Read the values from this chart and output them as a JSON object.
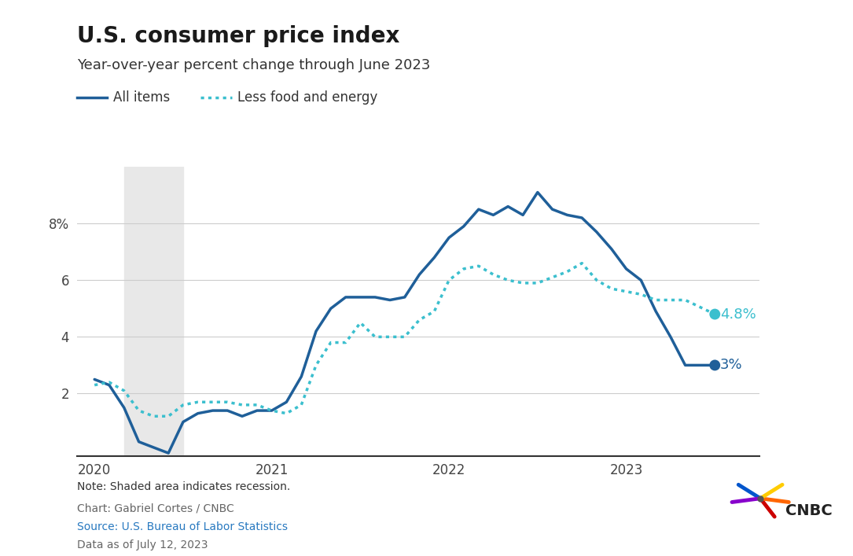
{
  "title": "U.S. consumer price index",
  "subtitle": "Year-over-year percent change through June 2023",
  "title_fontsize": 20,
  "subtitle_fontsize": 13,
  "background_color": "#ffffff",
  "recession_start": 2020.167,
  "recession_end": 2020.5,
  "recession_color": "#e8e8e8",
  "all_items_color": "#1f5f99",
  "core_color": "#3bbfce",
  "all_items_label": "All items",
  "core_label": "Less food and energy",
  "note_text": "Note: Shaded area indicates recession.",
  "chart_credit": "Chart: Gabriel Cortes / CNBC",
  "source_text": "Source: U.S. Bureau of Labor Statistics",
  "source_color": "#2879c0",
  "data_date": "Data as of July 12, 2023",
  "footer_color": "#666666",
  "ylim": [
    -0.2,
    10.0
  ],
  "yticks": [
    2,
    4,
    6,
    8
  ],
  "ytick_labels": [
    "2",
    "4",
    "6",
    "8%"
  ],
  "all_items": {
    "dates": [
      2020.0,
      2020.083,
      2020.167,
      2020.25,
      2020.333,
      2020.417,
      2020.5,
      2020.583,
      2020.667,
      2020.75,
      2020.833,
      2020.917,
      2021.0,
      2021.083,
      2021.167,
      2021.25,
      2021.333,
      2021.417,
      2021.5,
      2021.583,
      2021.667,
      2021.75,
      2021.833,
      2021.917,
      2022.0,
      2022.083,
      2022.167,
      2022.25,
      2022.333,
      2022.417,
      2022.5,
      2022.583,
      2022.667,
      2022.75,
      2022.833,
      2022.917,
      2023.0,
      2023.083,
      2023.167,
      2023.25,
      2023.333,
      2023.5
    ],
    "values": [
      2.5,
      2.3,
      1.5,
      0.3,
      0.1,
      -0.1,
      1.0,
      1.3,
      1.4,
      1.4,
      1.2,
      1.4,
      1.4,
      1.7,
      2.6,
      4.2,
      5.0,
      5.4,
      5.4,
      5.4,
      5.3,
      5.4,
      6.2,
      6.8,
      7.5,
      7.9,
      8.5,
      8.3,
      8.6,
      8.3,
      9.1,
      8.5,
      8.3,
      8.2,
      7.7,
      7.1,
      6.4,
      6.0,
      4.9,
      4.0,
      3.0,
      3.0
    ]
  },
  "core": {
    "dates": [
      2020.0,
      2020.083,
      2020.167,
      2020.25,
      2020.333,
      2020.417,
      2020.5,
      2020.583,
      2020.667,
      2020.75,
      2020.833,
      2020.917,
      2021.0,
      2021.083,
      2021.167,
      2021.25,
      2021.333,
      2021.417,
      2021.5,
      2021.583,
      2021.667,
      2021.75,
      2021.833,
      2021.917,
      2022.0,
      2022.083,
      2022.167,
      2022.25,
      2022.333,
      2022.417,
      2022.5,
      2022.583,
      2022.667,
      2022.75,
      2022.833,
      2022.917,
      2023.0,
      2023.083,
      2023.167,
      2023.25,
      2023.333,
      2023.5
    ],
    "values": [
      2.3,
      2.4,
      2.1,
      1.4,
      1.2,
      1.2,
      1.6,
      1.7,
      1.7,
      1.7,
      1.6,
      1.6,
      1.4,
      1.3,
      1.6,
      3.0,
      3.8,
      3.8,
      4.5,
      4.0,
      4.0,
      4.0,
      4.6,
      4.9,
      6.0,
      6.4,
      6.5,
      6.2,
      6.0,
      5.9,
      5.9,
      6.1,
      6.3,
      6.6,
      6.0,
      5.7,
      5.6,
      5.5,
      5.3,
      5.3,
      5.3,
      4.8
    ]
  },
  "end_label_all": "3%",
  "end_label_core": "4.8%",
  "end_label_color_all": "#1f5f99",
  "end_label_color_core": "#3bbfce",
  "xlim": [
    2019.9,
    2023.75
  ],
  "xtick_positions": [
    2020,
    2021,
    2022,
    2023
  ],
  "xtick_labels": [
    "2020",
    "2021",
    "2022",
    "2023"
  ]
}
